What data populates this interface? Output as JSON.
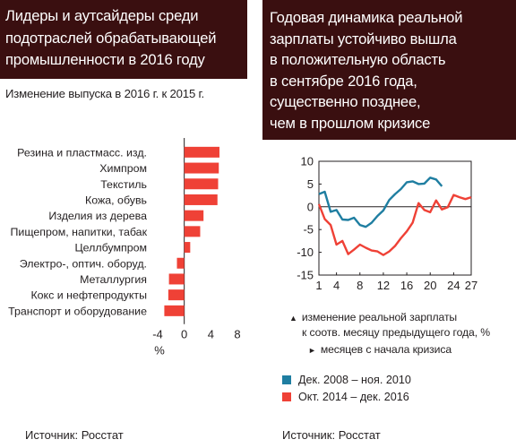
{
  "left": {
    "title_lines": [
      "Лидеры и аутсайдеры среди",
      "подотраслей обрабатывающей",
      "промышленности в 2016 году"
    ],
    "subtitle": "Изменение выпуска в 2016 г. к 2015 г.",
    "source": "Источник: Росстат"
  },
  "right": {
    "title_lines": [
      "Годовая динамика реальной",
      "зарплаты устойчиво вышла",
      "в положительную область",
      "в сентябре 2016 года,",
      "существенно позднее,",
      "чем в прошлом кризисе"
    ],
    "note_y_line1": "изменение реальной зарплаты",
    "note_y_line2": "к соотв. месяцу предыдущего года, %",
    "note_x": "месяцев с начала кризиса",
    "source": "Источник: Росстат"
  },
  "colors": {
    "bar": "#ef4136",
    "series_blue": "#1f7ea1",
    "series_red": "#ef4136",
    "title_bg": "#3a0f10"
  },
  "chart_data": [
    {
      "type": "bar",
      "orientation": "horizontal",
      "categories": [
        "Резина и пластмасс. изд.",
        "Химпром",
        "Текстиль",
        "Кожа, обувь",
        "Изделия из дерева",
        "Пищепром, напитки, табак",
        "Целлбумпром",
        "Электро-, оптич. оборуд.",
        "Металлургия",
        "Кокс и нефтепродукты",
        "Транспорт и оборудование"
      ],
      "values": [
        5.3,
        5.2,
        5.1,
        5.0,
        2.9,
        2.4,
        0.9,
        -1.1,
        -2.3,
        -2.4,
        -3.0
      ],
      "xlabel": "%",
      "xlim": [
        -4,
        8
      ],
      "xticks": [
        -4,
        0,
        4,
        8
      ]
    },
    {
      "type": "line",
      "xlim": [
        1,
        27
      ],
      "xticks": [
        1,
        4,
        8,
        12,
        16,
        20,
        24,
        27
      ],
      "ylim": [
        -15,
        10
      ],
      "yticks": [
        10,
        5,
        0,
        -5,
        -10,
        -15
      ],
      "series": [
        {
          "name": "Дек. 2008 – ноя. 2010",
          "x": [
            1,
            2,
            3,
            4,
            5,
            6,
            7,
            8,
            9,
            10,
            11,
            12,
            13,
            14,
            15,
            16,
            17,
            18,
            19,
            20,
            21,
            22
          ],
          "values": [
            2.8,
            3.3,
            -1.1,
            -0.7,
            -2.8,
            -2.9,
            -2.4,
            -4.0,
            -4.4,
            -3.5,
            -2.0,
            -0.8,
            1.5,
            2.8,
            3.9,
            5.4,
            5.6,
            5.0,
            5.1,
            6.4,
            6.0,
            4.5
          ]
        },
        {
          "name": "Окт. 2014 – дек. 2016",
          "x": [
            1,
            2,
            3,
            4,
            5,
            6,
            7,
            8,
            9,
            10,
            11,
            12,
            13,
            14,
            15,
            16,
            17,
            18,
            19,
            20,
            21,
            22,
            23,
            24,
            25,
            26,
            27
          ],
          "values": [
            0.6,
            -2.7,
            -4.0,
            -8.3,
            -7.5,
            -10.4,
            -9.4,
            -8.3,
            -9.0,
            -9.6,
            -9.8,
            -10.6,
            -9.8,
            -8.6,
            -6.9,
            -5.4,
            -3.5,
            0.8,
            -0.7,
            -1.2,
            1.4,
            -0.6,
            -0.1,
            2.6,
            2.1,
            1.7,
            2.1
          ]
        }
      ]
    }
  ]
}
